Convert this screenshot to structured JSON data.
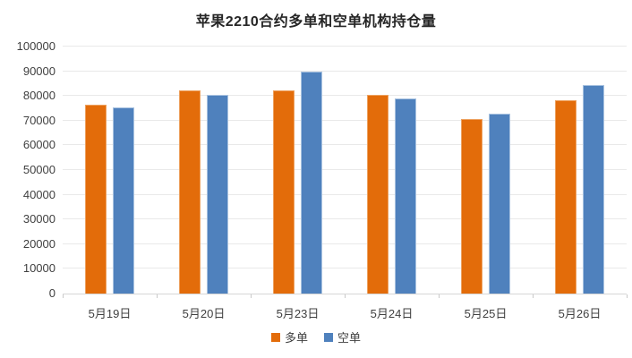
{
  "chart_data": {
    "type": "bar",
    "title": "苹果2210合约多单和空单机构持仓量",
    "categories": [
      "5月19日",
      "5月20日",
      "5月23日",
      "5月24日",
      "5月25日",
      "5月26日"
    ],
    "series": [
      {
        "name": "多单",
        "color": "#e36c0a",
        "border_color": "#eda15f",
        "values": [
          76500,
          82400,
          82400,
          80400,
          70700,
          78400
        ]
      },
      {
        "name": "空单",
        "color": "#4f81bd",
        "border_color": "#a8c2e0",
        "values": [
          75500,
          80400,
          90000,
          79000,
          72700,
          84300
        ]
      }
    ],
    "xlabel": "",
    "ylabel": "",
    "ylim": [
      0,
      100000
    ],
    "yticks": [
      0,
      10000,
      20000,
      30000,
      40000,
      50000,
      60000,
      70000,
      80000,
      90000,
      100000
    ],
    "grid": "horizontal",
    "legend_position": "bottom"
  },
  "colors": {
    "gridline": "#e9e9e9",
    "axis_line": "#d6d6d6",
    "title_text": "#262626",
    "tick_text": "#404040"
  }
}
